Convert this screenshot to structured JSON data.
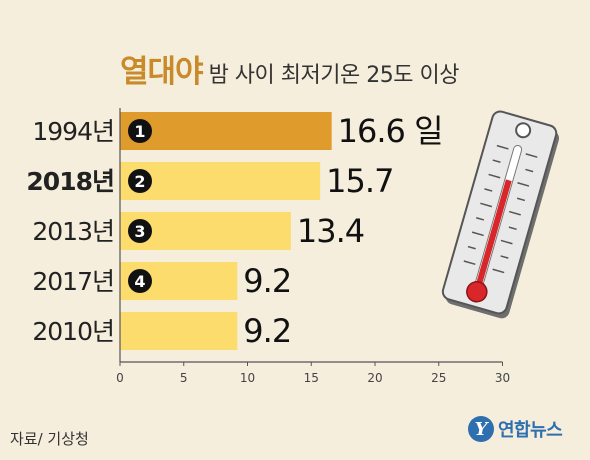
{
  "title": {
    "main": "열대야",
    "sub": "밤 사이 최저기온 25도 이상"
  },
  "source": "자료/ 기상청",
  "logo": {
    "mark": "Y",
    "text": "연합뉴스"
  },
  "colors": {
    "first_bar": "#e09b2d",
    "bar": "#fddc6e",
    "badge": "#111111",
    "axis": "#555555"
  },
  "chart_data": {
    "type": "bar",
    "orientation": "horizontal",
    "categories": [
      "1994년",
      "2018년",
      "2013년",
      "2017년",
      "2010년"
    ],
    "values": [
      16.6,
      15.7,
      13.4,
      9.2,
      9.2
    ],
    "value_labels": [
      "16.6 일",
      "15.7",
      "13.4",
      "9.2",
      "9.2"
    ],
    "badges": [
      "1",
      "2",
      "3",
      "4",
      ""
    ],
    "bold_categories": [
      "2018년"
    ],
    "xlim": [
      0,
      30
    ],
    "xticks": [
      0,
      5,
      10,
      15,
      20,
      25,
      30
    ],
    "grid": false,
    "legend": "none"
  }
}
